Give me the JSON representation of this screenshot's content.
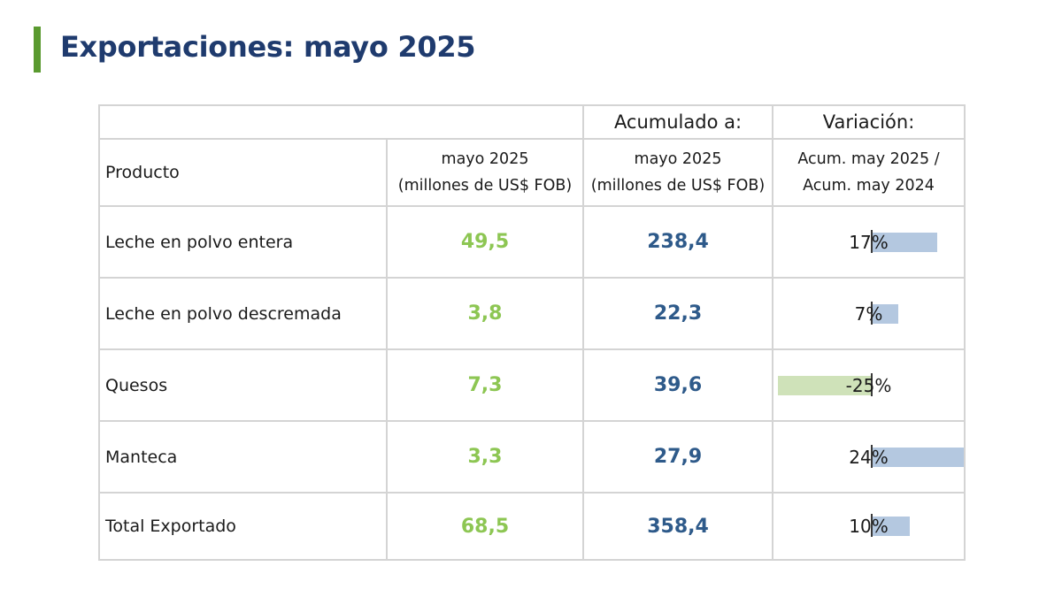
{
  "header": {
    "title": "Exportaciones: mayo 2025"
  },
  "table": {
    "header_top": {
      "acumulado": "Acumulado a:",
      "variacion": "Variación:"
    },
    "header_sub": {
      "producto": "Producto",
      "mayo_line1": "mayo 2025",
      "mayo_line2": "(millones de US$ FOB)",
      "acum_line1": "mayo 2025",
      "acum_line2": "(millones de US$ FOB)",
      "var_line1": "Acum. may 2025 /",
      "var_line2": "Acum. may 2024"
    },
    "rows": [
      {
        "producto": "Leche en polvo entera",
        "mayo": "49,5",
        "acum": "238,4",
        "variacion": "17%",
        "var_pct": 17
      },
      {
        "producto": "Leche en polvo descremada",
        "mayo": "3,8",
        "acum": "22,3",
        "variacion": "7%",
        "var_pct": 7
      },
      {
        "producto": "Quesos",
        "mayo": "7,3",
        "acum": "39,6",
        "variacion": "-25%",
        "var_pct": -25
      },
      {
        "producto": "Manteca",
        "mayo": "3,3",
        "acum": "27,9",
        "variacion": "24%",
        "var_pct": 24
      },
      {
        "producto": "Total Exportado",
        "mayo": "68,5",
        "acum": "358,4",
        "variacion": "10%",
        "var_pct": 10
      }
    ]
  },
  "colors": {
    "title": "#1f3b6e",
    "accent_bar": "#5a9a2f",
    "mayo_values": "#8dc653",
    "acum_values": "#2e5a8a",
    "positive_bar": "#b4c8e0",
    "negative_bar": "#cfe2b9"
  }
}
